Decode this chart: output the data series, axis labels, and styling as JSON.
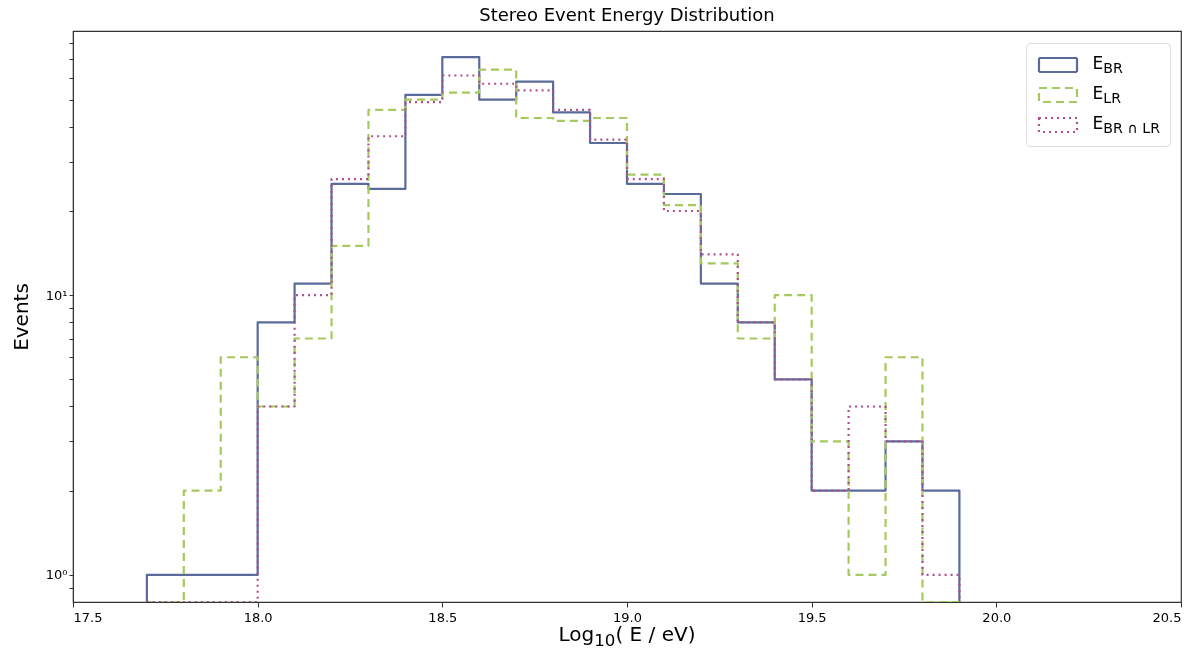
{
  "chart_data": {
    "type": "histogram",
    "title": "Stereo Event Energy Distribution",
    "xlabel": "Log$_{10}$( E / eV)",
    "ylabel": "Events",
    "bins": [
      17.7,
      17.8,
      17.9,
      18.0,
      18.1,
      18.2,
      18.3,
      18.4,
      18.5,
      18.6,
      18.7,
      18.8,
      18.9,
      19.0,
      19.1,
      19.2,
      19.3,
      19.4,
      19.5,
      19.6,
      19.7,
      19.8,
      19.9
    ],
    "series": [
      {
        "name": "E$_{BR}$",
        "color": "#5a6a9a",
        "line_style": "solid",
        "values": [
          1,
          1,
          1,
          8,
          11,
          25,
          24,
          52,
          71,
          50,
          58,
          45,
          35,
          25,
          23,
          11,
          8,
          5,
          2,
          2,
          3,
          2
        ]
      },
      {
        "name": "E$_{LR}$",
        "color": "#a6c95f",
        "line_style": "dashed",
        "values": [
          null,
          2,
          6,
          4,
          7,
          15,
          46,
          50,
          53,
          64,
          43,
          42,
          43,
          27,
          21,
          13,
          7,
          10,
          3,
          1,
          6,
          null
        ]
      },
      {
        "name": "E$_{BR ∩ LR}$",
        "color": "#b0508a",
        "line_style": "dotted",
        "values": [
          null,
          null,
          null,
          4,
          10,
          26,
          37,
          49,
          61,
          57,
          54,
          46,
          36,
          26,
          20,
          14,
          8,
          5,
          2,
          4,
          3,
          1
        ]
      }
    ],
    "log": "y",
    "xlim": [
      17.5,
      20.5
    ],
    "ylim": [
      0.8,
      88
    ],
    "xticks": [
      17.5,
      {
        "value": 18,
        "label": "18.0"
      },
      18.5,
      {
        "value": 19,
        "label": "19.0"
      },
      19.5,
      {
        "value": 20,
        "label": "20.0"
      },
      20.5
    ],
    "yticks": [
      {
        "value": 0.9,
        "label": null
      },
      {
        "value": 1,
        "label": "10⁰"
      },
      {
        "value": 2,
        "label": null
      },
      {
        "value": 3,
        "label": null
      },
      {
        "value": 4,
        "label": null
      },
      {
        "value": 5,
        "label": null
      },
      {
        "value": 6,
        "label": null
      },
      {
        "value": 7,
        "label": null
      },
      {
        "value": 8,
        "label": null
      },
      {
        "value": 9,
        "label": null
      },
      {
        "value": 10,
        "label": "10¹"
      },
      {
        "value": 20,
        "label": null
      },
      {
        "value": 30,
        "label": null
      },
      {
        "value": 40,
        "label": null
      },
      {
        "value": 50,
        "label": null
      },
      {
        "value": 60,
        "label": null
      },
      {
        "value": 70,
        "label": null
      },
      {
        "value": 80,
        "label": null
      }
    ],
    "grid": false,
    "legend": "top right"
  }
}
